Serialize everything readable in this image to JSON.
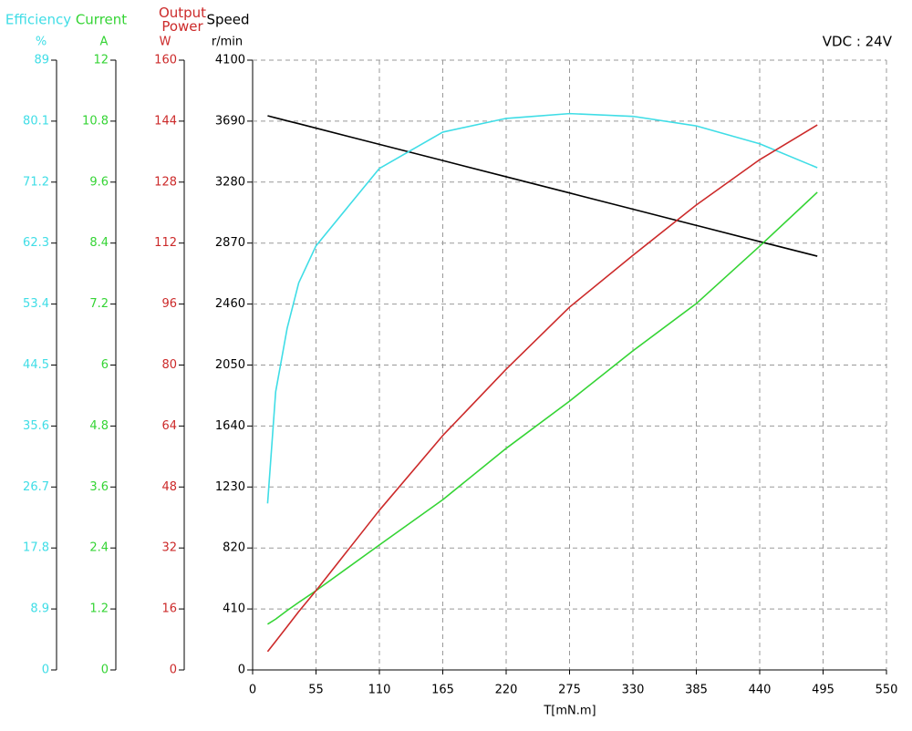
{
  "chart_data": {
    "type": "line",
    "annotation": "VDC : 24V",
    "x_label": "T[mN.m]",
    "xlim": [
      0,
      550
    ],
    "xticks": [
      0,
      55,
      110,
      165,
      220,
      275,
      330,
      385,
      440,
      495,
      550
    ],
    "grid": true,
    "y_axes": [
      {
        "title": "Efficiency",
        "unit": "%",
        "color": "#3fdde6",
        "ylim": [
          0,
          89
        ],
        "yticks": [
          0,
          8.9,
          17.8,
          26.7,
          35.6,
          44.5,
          53.4,
          62.3,
          71.2,
          80.1,
          89
        ]
      },
      {
        "title": "Current",
        "unit": "A",
        "color": "#35d435",
        "ylim": [
          0,
          12
        ],
        "yticks": [
          0,
          1.2,
          2.4,
          3.6,
          4.8,
          6,
          7.2,
          8.4,
          9.6,
          10.8,
          12
        ]
      },
      {
        "title": "Output Power",
        "unit": "W",
        "color": "#cc2a2a",
        "ylim": [
          0,
          160
        ],
        "yticks": [
          0,
          16,
          32,
          48,
          64,
          80,
          96,
          112,
          128,
          144,
          160
        ]
      },
      {
        "title": "Speed",
        "unit": "r/min",
        "color": "#000000",
        "ylim": [
          0,
          4100
        ],
        "yticks": [
          0,
          410,
          820,
          1230,
          1640,
          2050,
          2460,
          2870,
          3280,
          3690,
          4100
        ]
      }
    ],
    "x": [
      13,
      20,
      30,
      40,
      55,
      110,
      165,
      220,
      275,
      330,
      385,
      440,
      490
    ],
    "series": [
      {
        "name": "Speed",
        "axis": 3,
        "color": "#000000",
        "values": [
          3726,
          3712,
          3692,
          3673,
          3643,
          3534,
          3425,
          3316,
          3207,
          3098,
          2989,
          2880,
          2782
        ]
      },
      {
        "name": "Efficiency",
        "axis": 0,
        "color": "#3fdde6",
        "values": [
          24.3,
          40.6,
          49.9,
          56.5,
          61.9,
          73.2,
          78.5,
          80.5,
          81.2,
          80.8,
          79.4,
          76.8,
          73.3
        ]
      },
      {
        "name": "Current",
        "axis": 1,
        "color": "#35d435",
        "values": [
          0.9,
          1.0,
          1.17,
          1.33,
          1.56,
          2.46,
          3.35,
          4.36,
          5.29,
          6.28,
          7.21,
          8.34,
          9.4
        ]
      },
      {
        "name": "Output Power",
        "axis": 2,
        "color": "#cc2a2a",
        "values": [
          4.8,
          7.5,
          11.4,
          15.3,
          20.8,
          41.9,
          61.5,
          78.9,
          95.2,
          108.8,
          122.0,
          133.9,
          143.0
        ]
      }
    ]
  }
}
